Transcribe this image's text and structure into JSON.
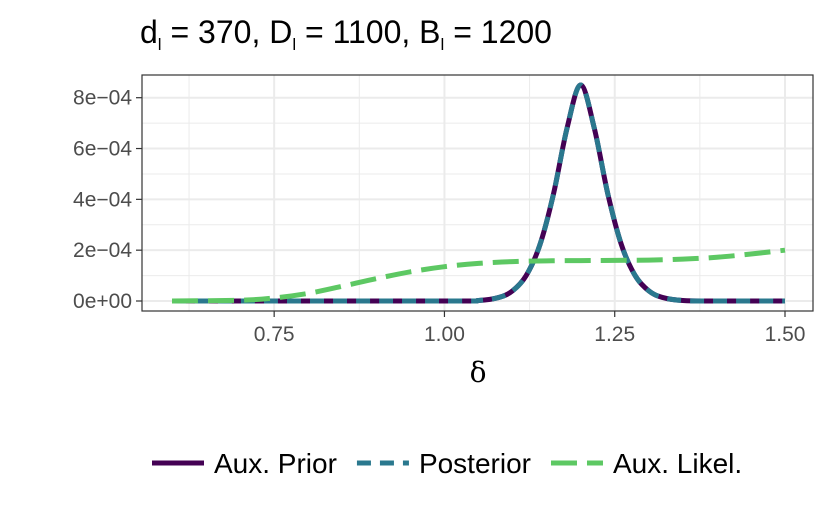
{
  "chart_data": {
    "type": "line",
    "title": {
      "d_sym": "d",
      "d_sub": "l",
      "d_val": " = 370, ",
      "D_sym": "D",
      "D_sub": "l",
      "D_val": " = 1100, ",
      "B_sym": "B",
      "B_sub": "l",
      "B_val": " = 1200"
    },
    "xlabel": "δ",
    "ylabel": "",
    "xlim": [
      0.6,
      1.5
    ],
    "ylim": [
      0,
      0.00085
    ],
    "x_ticks": [
      0.75,
      1.0,
      1.25,
      1.5
    ],
    "x_tick_labels": [
      "0.75",
      "1.00",
      "1.25",
      "1.50"
    ],
    "y_ticks": [
      0,
      0.0002,
      0.0004,
      0.0006,
      0.0008
    ],
    "y_tick_labels": [
      "0e+00",
      "2e−04",
      "4e−04",
      "6e−04",
      "8e−04"
    ],
    "grid": true,
    "legend_position": "bottom",
    "series": [
      {
        "name": "Aux. Prior",
        "color": "#440154",
        "style": "solid",
        "x": [
          0.6,
          1.0,
          1.05,
          1.08,
          1.1,
          1.12,
          1.14,
          1.16,
          1.18,
          1.2,
          1.22,
          1.24,
          1.26,
          1.28,
          1.3,
          1.32,
          1.35,
          1.4,
          1.5
        ],
        "y": [
          0,
          0,
          2e-06,
          1.4e-05,
          4e-05,
          0.0001,
          0.00022,
          0.00042,
          0.00068,
          0.00085,
          0.00068,
          0.00042,
          0.00022,
          0.0001,
          4e-05,
          1.4e-05,
          2e-06,
          0,
          0
        ]
      },
      {
        "name": "Posterior",
        "color": "#2A788E",
        "style": "dashed",
        "x": [
          0.6,
          1.0,
          1.05,
          1.08,
          1.1,
          1.12,
          1.14,
          1.16,
          1.18,
          1.2,
          1.22,
          1.24,
          1.26,
          1.28,
          1.3,
          1.32,
          1.35,
          1.4,
          1.5
        ],
        "y": [
          0,
          0,
          2e-06,
          1.4e-05,
          4e-05,
          0.0001,
          0.00022,
          0.00042,
          0.00068,
          0.00085,
          0.00068,
          0.00042,
          0.00022,
          0.0001,
          4e-05,
          1.4e-05,
          2e-06,
          0,
          0
        ]
      },
      {
        "name": "Aux. Likel.",
        "color": "#5DC863",
        "style": "longdash",
        "x": [
          0.6,
          0.7,
          0.75,
          0.8,
          0.85,
          0.9,
          0.95,
          1.0,
          1.05,
          1.1,
          1.15,
          1.2,
          1.25,
          1.3,
          1.35,
          1.4,
          1.45,
          1.5
        ],
        "y": [
          0,
          3e-06,
          1.2e-05,
          3e-05,
          5.8e-05,
          8.8e-05,
          0.000115,
          0.000135,
          0.000148,
          0.000155,
          0.000158,
          0.000159,
          0.00016,
          0.000161,
          0.000165,
          0.000172,
          0.000185,
          0.0002
        ]
      }
    ]
  }
}
